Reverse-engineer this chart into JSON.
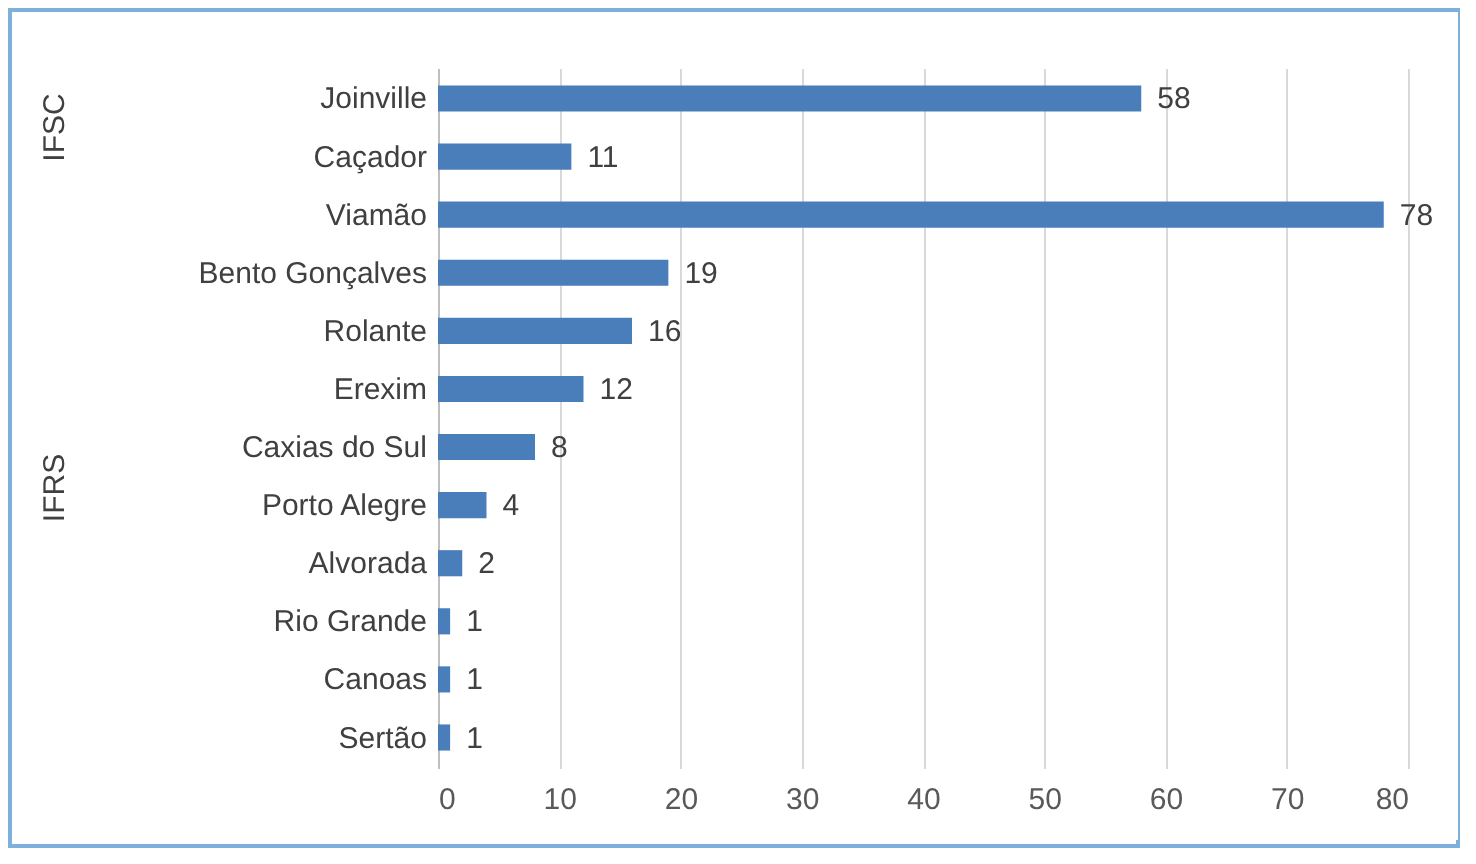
{
  "chart_data": {
    "type": "bar",
    "orientation": "horizontal",
    "categories": [
      "Joinville",
      "Caçador",
      "Viamão",
      "Bento Gonçalves",
      "Rolante",
      "Erexim",
      "Caxias do Sul",
      "Porto Alegre",
      "Alvorada",
      "Rio Grande",
      "Canoas",
      "Sertão"
    ],
    "values": [
      58,
      11,
      78,
      19,
      16,
      12,
      8,
      4,
      2,
      1,
      1,
      1
    ],
    "color": "#4a7ebb",
    "xlim": [
      0,
      80
    ],
    "xticks": [
      0,
      10,
      20,
      30,
      40,
      50,
      60,
      70,
      80
    ],
    "grid": "x",
    "data_labels": true,
    "annotations": [
      "IFSC",
      "IFRS"
    ]
  }
}
